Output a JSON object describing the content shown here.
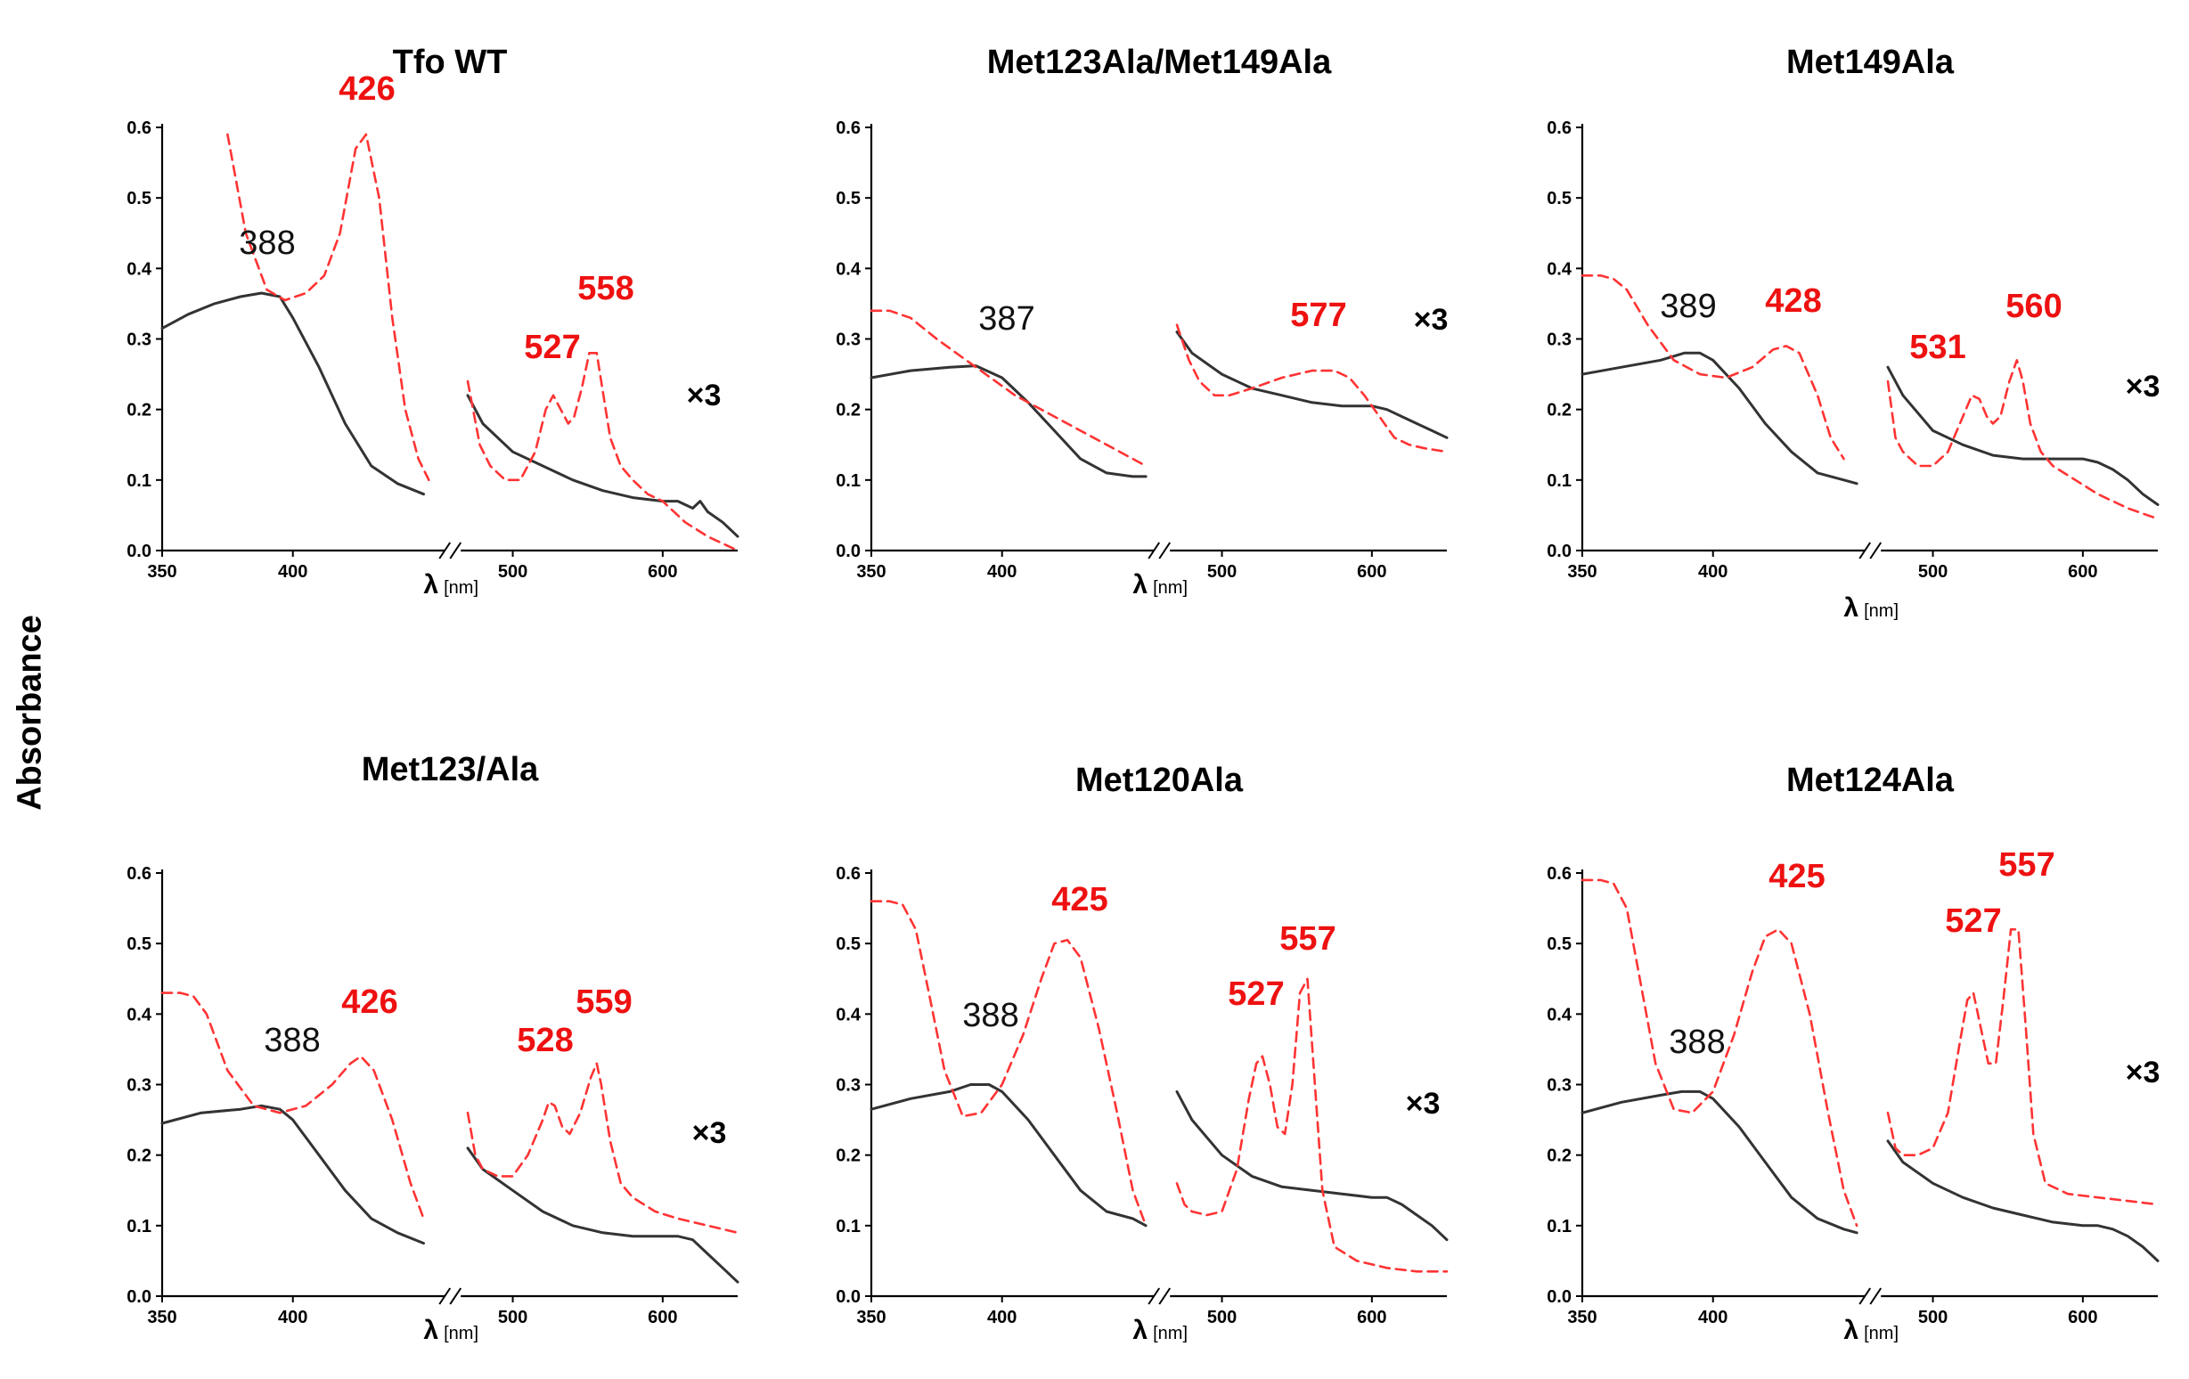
{
  "figure": {
    "ylabel": "Absorbance"
  },
  "colors": {
    "reduced_dashed": "#ff3333",
    "oxidized_solid": "#333333",
    "oxidized_label": "#111111",
    "reduced_label": "#ee1111"
  },
  "axes_common": {
    "xticks": [
      "350",
      "400",
      "500",
      "600"
    ],
    "yticks": [
      "0.0",
      "0.1",
      "0.2",
      "0.3",
      "0.4",
      "0.5",
      "0.6"
    ],
    "xlabel_symbol": "λ",
    "xlabel_unit": "[nm]",
    "ylim": [
      0,
      0.6
    ],
    "left_segment_xlim": [
      350,
      455
    ],
    "right_segment_xlim": [
      465,
      650
    ],
    "axis_break": true
  },
  "chart_data": [
    {
      "type": "line",
      "title": "Tfo WT",
      "scale_note": "×3",
      "peak_labels": [
        {
          "text": "388",
          "series": "solid"
        },
        {
          "text": "426",
          "series": "dashed"
        },
        {
          "text": "527",
          "series": "dashed"
        },
        {
          "text": "558",
          "series": "dashed"
        }
      ],
      "series": [
        {
          "style": "solid",
          "segment": "left",
          "x": [
            350,
            360,
            370,
            380,
            388,
            395,
            400,
            410,
            420,
            430,
            440,
            450
          ],
          "y": [
            0.315,
            0.335,
            0.35,
            0.36,
            0.365,
            0.36,
            0.33,
            0.26,
            0.18,
            0.12,
            0.095,
            0.08
          ]
        },
        {
          "style": "dashed",
          "segment": "left",
          "x": [
            375,
            382,
            390,
            397,
            405,
            412,
            418,
            424,
            428,
            433,
            438,
            443,
            448,
            452
          ],
          "y": [
            0.59,
            0.45,
            0.37,
            0.355,
            0.365,
            0.39,
            0.45,
            0.57,
            0.59,
            0.5,
            0.33,
            0.2,
            0.13,
            0.1
          ]
        },
        {
          "style": "solid",
          "segment": "right",
          "x": [
            470,
            480,
            500,
            520,
            540,
            560,
            580,
            600,
            610,
            620,
            625,
            630,
            640,
            650
          ],
          "y": [
            0.22,
            0.18,
            0.14,
            0.12,
            0.1,
            0.085,
            0.075,
            0.07,
            0.07,
            0.06,
            0.07,
            0.055,
            0.04,
            0.02
          ]
        },
        {
          "style": "dashed",
          "segment": "right",
          "x": [
            470,
            478,
            485,
            495,
            505,
            515,
            522,
            527,
            532,
            537,
            541,
            546,
            551,
            556,
            559,
            565,
            572,
            580,
            590,
            600,
            615,
            630,
            650
          ],
          "y": [
            0.24,
            0.15,
            0.12,
            0.1,
            0.1,
            0.14,
            0.2,
            0.22,
            0.2,
            0.18,
            0.19,
            0.23,
            0.28,
            0.28,
            0.24,
            0.16,
            0.12,
            0.1,
            0.08,
            0.07,
            0.04,
            0.02,
            0.0
          ]
        }
      ]
    },
    {
      "type": "line",
      "title": "Met123Ala/Met149Ala",
      "scale_note": "×3",
      "peak_labels": [
        {
          "text": "387",
          "series": "solid"
        },
        {
          "text": "577",
          "series": "dashed"
        }
      ],
      "series": [
        {
          "style": "solid",
          "segment": "left",
          "x": [
            350,
            365,
            380,
            390,
            400,
            410,
            420,
            430,
            440,
            450,
            455
          ],
          "y": [
            0.245,
            0.255,
            0.26,
            0.262,
            0.245,
            0.21,
            0.17,
            0.13,
            0.11,
            0.105,
            0.105
          ]
        },
        {
          "style": "dashed",
          "segment": "left",
          "x": [
            350,
            357,
            365,
            375,
            390,
            405,
            420,
            435,
            450,
            455
          ],
          "y": [
            0.34,
            0.34,
            0.33,
            0.3,
            0.26,
            0.22,
            0.19,
            0.16,
            0.13,
            0.12
          ]
        },
        {
          "style": "solid",
          "segment": "right",
          "x": [
            470,
            480,
            500,
            520,
            540,
            560,
            580,
            600,
            610,
            620,
            630,
            640,
            650
          ],
          "y": [
            0.31,
            0.28,
            0.25,
            0.23,
            0.22,
            0.21,
            0.205,
            0.205,
            0.2,
            0.19,
            0.18,
            0.17,
            0.16
          ]
        },
        {
          "style": "dashed",
          "segment": "right",
          "x": [
            470,
            478,
            485,
            495,
            505,
            520,
            540,
            560,
            575,
            585,
            595,
            605,
            615,
            625,
            635,
            650
          ],
          "y": [
            0.32,
            0.27,
            0.24,
            0.22,
            0.22,
            0.23,
            0.245,
            0.255,
            0.255,
            0.245,
            0.22,
            0.19,
            0.16,
            0.15,
            0.145,
            0.14
          ]
        }
      ]
    },
    {
      "type": "line",
      "title": "Met149Ala",
      "scale_note": "×3",
      "peak_labels": [
        {
          "text": "389",
          "series": "solid"
        },
        {
          "text": "428",
          "series": "dashed"
        },
        {
          "text": "531",
          "series": "dashed"
        },
        {
          "text": "560",
          "series": "dashed"
        }
      ],
      "series": [
        {
          "style": "solid",
          "segment": "left",
          "x": [
            350,
            365,
            380,
            389,
            395,
            400,
            410,
            420,
            430,
            440,
            450,
            455
          ],
          "y": [
            0.25,
            0.26,
            0.27,
            0.28,
            0.28,
            0.27,
            0.23,
            0.18,
            0.14,
            0.11,
            0.1,
            0.095
          ]
        },
        {
          "style": "dashed",
          "segment": "left",
          "x": [
            350,
            357,
            362,
            367,
            375,
            385,
            395,
            405,
            415,
            423,
            428,
            433,
            440,
            445,
            450
          ],
          "y": [
            0.39,
            0.39,
            0.385,
            0.37,
            0.32,
            0.27,
            0.25,
            0.245,
            0.26,
            0.285,
            0.29,
            0.28,
            0.22,
            0.16,
            0.13
          ]
        },
        {
          "style": "solid",
          "segment": "right",
          "x": [
            470,
            480,
            500,
            520,
            540,
            560,
            580,
            600,
            610,
            620,
            630,
            640,
            650
          ],
          "y": [
            0.26,
            0.22,
            0.17,
            0.15,
            0.135,
            0.13,
            0.13,
            0.13,
            0.125,
            0.115,
            0.1,
            0.08,
            0.065
          ]
        },
        {
          "style": "dashed",
          "segment": "right",
          "x": [
            470,
            475,
            480,
            490,
            500,
            510,
            520,
            526,
            531,
            536,
            540,
            545,
            551,
            556,
            560,
            565,
            572,
            580,
            595,
            610,
            630,
            650
          ],
          "y": [
            0.24,
            0.16,
            0.14,
            0.12,
            0.12,
            0.14,
            0.19,
            0.22,
            0.215,
            0.19,
            0.18,
            0.19,
            0.24,
            0.27,
            0.24,
            0.18,
            0.14,
            0.12,
            0.1,
            0.08,
            0.06,
            0.045
          ]
        }
      ]
    },
    {
      "type": "line",
      "title": "Met123/Ala",
      "scale_note": "×3",
      "peak_labels": [
        {
          "text": "388",
          "series": "solid"
        },
        {
          "text": "426",
          "series": "dashed"
        },
        {
          "text": "528",
          "series": "dashed"
        },
        {
          "text": "559",
          "series": "dashed"
        }
      ],
      "series": [
        {
          "style": "solid",
          "segment": "left",
          "x": [
            350,
            365,
            380,
            388,
            395,
            400,
            410,
            420,
            430,
            440,
            450
          ],
          "y": [
            0.245,
            0.26,
            0.265,
            0.27,
            0.265,
            0.25,
            0.2,
            0.15,
            0.11,
            0.09,
            0.075
          ]
        },
        {
          "style": "dashed",
          "segment": "left",
          "x": [
            350,
            357,
            362,
            367,
            375,
            385,
            395,
            405,
            415,
            422,
            426,
            431,
            438,
            445,
            450
          ],
          "y": [
            0.43,
            0.43,
            0.425,
            0.4,
            0.32,
            0.27,
            0.26,
            0.27,
            0.3,
            0.33,
            0.34,
            0.32,
            0.25,
            0.16,
            0.11
          ]
        },
        {
          "style": "solid",
          "segment": "right",
          "x": [
            470,
            480,
            500,
            520,
            540,
            560,
            580,
            600,
            610,
            620,
            630,
            640,
            650
          ],
          "y": [
            0.21,
            0.18,
            0.15,
            0.12,
            0.1,
            0.09,
            0.085,
            0.085,
            0.085,
            0.08,
            0.06,
            0.04,
            0.02
          ]
        },
        {
          "style": "dashed",
          "segment": "right",
          "x": [
            470,
            475,
            480,
            490,
            500,
            510,
            520,
            524,
            528,
            533,
            538,
            545,
            552,
            556,
            559,
            565,
            572,
            580,
            595,
            610,
            630,
            650
          ],
          "y": [
            0.26,
            0.2,
            0.18,
            0.17,
            0.17,
            0.2,
            0.25,
            0.275,
            0.27,
            0.24,
            0.23,
            0.26,
            0.31,
            0.33,
            0.3,
            0.22,
            0.16,
            0.14,
            0.12,
            0.11,
            0.1,
            0.09
          ]
        }
      ]
    },
    {
      "type": "line",
      "title": "Met120Ala",
      "scale_note": "×3",
      "peak_labels": [
        {
          "text": "388",
          "series": "solid"
        },
        {
          "text": "425",
          "series": "dashed"
        },
        {
          "text": "527",
          "series": "dashed"
        },
        {
          "text": "557",
          "series": "dashed"
        }
      ],
      "series": [
        {
          "style": "solid",
          "segment": "left",
          "x": [
            350,
            365,
            380,
            388,
            395,
            400,
            410,
            420,
            430,
            440,
            450,
            455
          ],
          "y": [
            0.265,
            0.28,
            0.29,
            0.3,
            0.3,
            0.29,
            0.25,
            0.2,
            0.15,
            0.12,
            0.11,
            0.1
          ]
        },
        {
          "style": "dashed",
          "segment": "left",
          "x": [
            350,
            357,
            362,
            367,
            372,
            378,
            385,
            392,
            400,
            408,
            415,
            420,
            425,
            430,
            437,
            444,
            450,
            455
          ],
          "y": [
            0.56,
            0.56,
            0.555,
            0.52,
            0.43,
            0.32,
            0.255,
            0.26,
            0.3,
            0.37,
            0.45,
            0.5,
            0.505,
            0.48,
            0.38,
            0.26,
            0.15,
            0.1
          ]
        },
        {
          "style": "solid",
          "segment": "right",
          "x": [
            470,
            480,
            500,
            520,
            540,
            560,
            580,
            600,
            610,
            620,
            630,
            640,
            650
          ],
          "y": [
            0.29,
            0.25,
            0.2,
            0.17,
            0.155,
            0.15,
            0.145,
            0.14,
            0.14,
            0.13,
            0.115,
            0.1,
            0.08
          ]
        },
        {
          "style": "dashed",
          "segment": "right",
          "x": [
            470,
            475,
            480,
            490,
            500,
            510,
            518,
            523,
            527,
            532,
            537,
            542,
            547,
            552,
            557,
            562,
            567,
            575,
            590,
            610,
            630,
            650
          ],
          "y": [
            0.16,
            0.13,
            0.12,
            0.115,
            0.12,
            0.18,
            0.28,
            0.33,
            0.34,
            0.3,
            0.24,
            0.23,
            0.3,
            0.43,
            0.45,
            0.3,
            0.15,
            0.07,
            0.05,
            0.04,
            0.035,
            0.035
          ]
        }
      ]
    },
    {
      "type": "line",
      "title": "Met124Ala",
      "scale_note": "×3",
      "peak_labels": [
        {
          "text": "388",
          "series": "solid"
        },
        {
          "text": "425",
          "series": "dashed"
        },
        {
          "text": "527",
          "series": "dashed"
        },
        {
          "text": "557",
          "series": "dashed"
        }
      ],
      "series": [
        {
          "style": "solid",
          "segment": "left",
          "x": [
            350,
            365,
            380,
            388,
            395,
            400,
            410,
            420,
            430,
            440,
            450,
            455
          ],
          "y": [
            0.26,
            0.275,
            0.285,
            0.29,
            0.29,
            0.28,
            0.24,
            0.19,
            0.14,
            0.11,
            0.095,
            0.09
          ]
        },
        {
          "style": "dashed",
          "segment": "left",
          "x": [
            350,
            357,
            362,
            367,
            372,
            378,
            385,
            392,
            400,
            408,
            415,
            420,
            425,
            430,
            437,
            444,
            450,
            455
          ],
          "y": [
            0.59,
            0.59,
            0.585,
            0.55,
            0.45,
            0.33,
            0.265,
            0.26,
            0.29,
            0.37,
            0.46,
            0.51,
            0.52,
            0.5,
            0.4,
            0.26,
            0.15,
            0.1
          ]
        },
        {
          "style": "solid",
          "segment": "right",
          "x": [
            470,
            480,
            500,
            520,
            540,
            560,
            580,
            600,
            610,
            620,
            630,
            640,
            650
          ],
          "y": [
            0.22,
            0.19,
            0.16,
            0.14,
            0.125,
            0.115,
            0.105,
            0.1,
            0.1,
            0.095,
            0.085,
            0.07,
            0.05
          ]
        },
        {
          "style": "dashed",
          "segment": "right",
          "x": [
            470,
            475,
            480,
            490,
            500,
            510,
            518,
            523,
            527,
            532,
            537,
            542,
            547,
            552,
            557,
            562,
            567,
            575,
            590,
            610,
            630,
            650
          ],
          "y": [
            0.26,
            0.21,
            0.2,
            0.2,
            0.21,
            0.26,
            0.36,
            0.42,
            0.43,
            0.38,
            0.33,
            0.33,
            0.42,
            0.52,
            0.52,
            0.38,
            0.23,
            0.16,
            0.145,
            0.14,
            0.135,
            0.13
          ]
        }
      ]
    }
  ]
}
